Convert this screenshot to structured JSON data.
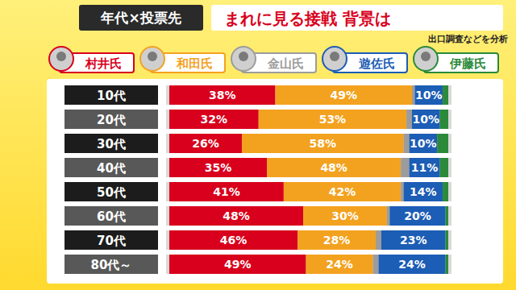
{
  "chart_data": {
    "type": "bar",
    "orientation": "horizontal",
    "stacked": true,
    "data_labels": true,
    "tick_labels": "y",
    "legend": "top",
    "title": "まれに見る接戦 背景は",
    "subtitle": "出口調査などを分析",
    "annotations": [
      "年代×投票先"
    ],
    "categories": [
      "10代",
      "20代",
      "30代",
      "40代",
      "50代",
      "60代",
      "70代",
      "80代～"
    ],
    "xlim": [
      0,
      100
    ],
    "xticks": [],
    "series": [
      {
        "name": "村井氏",
        "color": "#d8001c",
        "values": [
          38,
          32,
          26,
          35,
          41,
          48,
          46,
          49
        ],
        "value_labels": [
          "38%",
          "32%",
          "26%",
          "35%",
          "41%",
          "48%",
          "46%",
          "49%"
        ]
      },
      {
        "name": "和田氏",
        "color": "#f3a21f",
        "values": [
          49,
          53,
          58,
          48,
          42,
          30,
          28,
          24
        ],
        "value_labels": [
          "49%",
          "53%",
          "58%",
          "48%",
          "42%",
          "30%",
          "28%",
          "24%"
        ]
      },
      {
        "name": "金山氏",
        "color": "#9c9c9c",
        "values": [
          1,
          2,
          2,
          3,
          1,
          1,
          2,
          2
        ],
        "data_labels": false
      },
      {
        "name": "遊佐氏",
        "color": "#1c5db5",
        "values": [
          10,
          10,
          10,
          11,
          14,
          20,
          23,
          24
        ],
        "value_labels": [
          "10%",
          "10%",
          "10%",
          "11%",
          "14%",
          "20%",
          "23%",
          "24%"
        ]
      },
      {
        "name": "伊藤氏",
        "color": "#2a8a3a",
        "values": [
          2,
          3,
          4,
          3,
          2,
          1,
          1,
          1
        ],
        "data_labels": false
      }
    ]
  }
}
